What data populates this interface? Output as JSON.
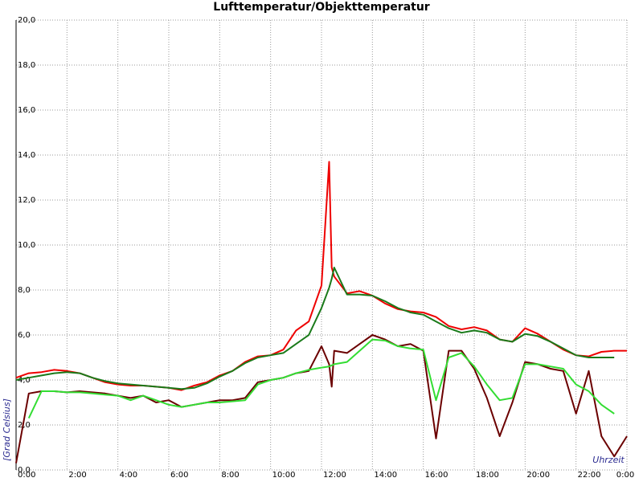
{
  "chart_data": {
    "type": "line",
    "title": "Lufttemperatur/Objekttemperatur",
    "x_label": "Uhrzeit",
    "y_label": "[Grad Celsius]",
    "xlim": [
      0,
      24
    ],
    "ylim": [
      0,
      20
    ],
    "grid": true,
    "xticks": [
      {
        "value": 0,
        "label": "0:00"
      },
      {
        "value": 2,
        "label": "2:00"
      },
      {
        "value": 4,
        "label": "4:00"
      },
      {
        "value": 6,
        "label": "6:00"
      },
      {
        "value": 8,
        "label": "8:00"
      },
      {
        "value": 10,
        "label": "10:00"
      },
      {
        "value": 12,
        "label": "12:00"
      },
      {
        "value": 14,
        "label": "14:00"
      },
      {
        "value": 16,
        "label": "16:00"
      },
      {
        "value": 18,
        "label": "18:00"
      },
      {
        "value": 20,
        "label": "20:00"
      },
      {
        "value": 22,
        "label": "22:00"
      },
      {
        "value": 24,
        "label": "0:00"
      }
    ],
    "yticks": [
      {
        "value": 0,
        "label": "0,0"
      },
      {
        "value": 2,
        "label": "2,0"
      },
      {
        "value": 4,
        "label": "4,0"
      },
      {
        "value": 6,
        "label": "6,0"
      },
      {
        "value": 8,
        "label": "8,0"
      },
      {
        "value": 10,
        "label": "10,0"
      },
      {
        "value": 12,
        "label": "12,0"
      },
      {
        "value": 14,
        "label": "14,0"
      },
      {
        "value": 16,
        "label": "16,0"
      },
      {
        "value": 18,
        "label": "18,0"
      },
      {
        "value": 20,
        "label": "20,0"
      }
    ],
    "x": [
      0,
      0.5,
      1,
      1.5,
      2,
      2.5,
      3,
      3.5,
      4,
      4.5,
      5,
      5.5,
      6,
      6.5,
      7,
      7.5,
      8,
      8.5,
      9,
      9.5,
      10,
      10.5,
      11,
      11.5,
      12,
      12.3,
      12.4,
      12.5,
      13,
      13.5,
      14,
      14.5,
      15,
      15.5,
      16,
      16.5,
      17,
      17.5,
      18,
      18.5,
      19,
      19.5,
      20,
      20.5,
      21,
      21.5,
      22,
      22.5,
      23,
      23.5,
      24
    ],
    "series": [
      {
        "color": "#6b0000",
        "values": [
          0.3,
          3.4,
          3.5,
          3.5,
          3.45,
          3.5,
          3.45,
          3.4,
          3.3,
          3.2,
          3.3,
          3.0,
          3.1,
          2.8,
          2.9,
          3.0,
          3.1,
          3.1,
          3.2,
          3.9,
          4.0,
          4.1,
          4.3,
          4.4,
          5.5,
          4.7,
          3.7,
          5.3,
          5.2,
          5.6,
          6.0,
          5.8,
          5.5,
          5.6,
          5.3,
          1.4,
          5.3,
          5.3,
          4.5,
          3.2,
          1.5,
          3.0,
          4.8,
          4.7,
          4.5,
          4.4,
          2.5,
          4.4,
          1.5,
          0.6,
          1.5
        ]
      },
      {
        "color": "#33dd33",
        "values": [
          null,
          2.3,
          3.5,
          3.5,
          3.45,
          3.45,
          3.4,
          3.35,
          3.3,
          3.1,
          3.3,
          3.1,
          2.9,
          2.8,
          2.9,
          3.0,
          3.0,
          3.05,
          3.1,
          3.8,
          4.0,
          4.1,
          4.3,
          4.45,
          4.55,
          4.6,
          4.65,
          4.7,
          4.8,
          5.3,
          5.8,
          5.75,
          5.5,
          5.4,
          5.35,
          3.1,
          5.0,
          5.2,
          4.6,
          3.8,
          3.1,
          3.2,
          4.7,
          4.7,
          4.6,
          4.5,
          3.8,
          3.5,
          2.9,
          2.5,
          null
        ]
      },
      {
        "color": "#ee0000",
        "values": [
          4.1,
          4.3,
          4.35,
          4.45,
          4.4,
          4.3,
          4.1,
          3.9,
          3.8,
          3.75,
          3.75,
          3.7,
          3.65,
          3.55,
          3.75,
          3.9,
          4.2,
          4.4,
          4.8,
          5.05,
          5.1,
          5.35,
          6.2,
          6.6,
          8.2,
          13.7,
          9.0,
          8.6,
          7.85,
          7.95,
          7.75,
          7.4,
          7.15,
          7.05,
          7.0,
          6.8,
          6.4,
          6.25,
          6.35,
          6.2,
          5.8,
          5.7,
          6.3,
          6.05,
          5.7,
          5.35,
          5.1,
          5.05,
          5.25,
          5.3,
          5.3
        ]
      },
      {
        "color": "#1a7a1a",
        "values": [
          4.0,
          4.1,
          4.2,
          4.3,
          4.35,
          4.3,
          4.1,
          3.95,
          3.85,
          3.8,
          3.75,
          3.7,
          3.65,
          3.6,
          3.65,
          3.85,
          4.15,
          4.4,
          4.75,
          5.0,
          5.1,
          5.2,
          5.6,
          6.0,
          7.2,
          8.1,
          8.5,
          9.0,
          7.8,
          7.8,
          7.75,
          7.5,
          7.2,
          7.0,
          6.9,
          6.6,
          6.3,
          6.1,
          6.2,
          6.1,
          5.8,
          5.7,
          6.05,
          5.95,
          5.7,
          5.4,
          5.1,
          5.0,
          5.0,
          5.0,
          null
        ]
      }
    ]
  }
}
